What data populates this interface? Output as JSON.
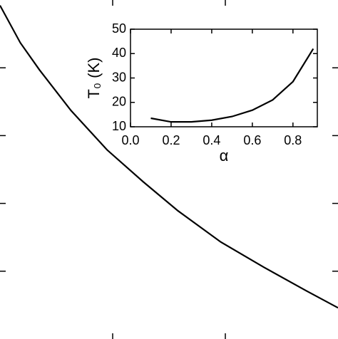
{
  "chart_data": [
    {
      "type": "line",
      "tick_labels": false,
      "x": [
        0,
        0.18,
        0.35,
        0.63,
        0.95,
        1.27,
        1.58,
        1.96,
        2.34,
        2.72,
        3.0
      ],
      "series": [
        {
          "color": "#000000",
          "values": [
            4.92,
            4.37,
            3.97,
            3.37,
            2.79,
            2.32,
            1.89,
            1.43,
            1.06,
            0.71,
            0.46
          ]
        }
      ],
      "xlim": [
        0,
        3
      ],
      "ylim": [
        0,
        5
      ],
      "xticks": [
        1,
        2
      ],
      "yticks": [
        1,
        2,
        3,
        4
      ]
    },
    {
      "type": "line",
      "tick_labels": true,
      "xlabel": "α",
      "ylabel": "T₀ (K)",
      "x": [
        0.1,
        0.2,
        0.3,
        0.4,
        0.5,
        0.6,
        0.7,
        0.8,
        0.9
      ],
      "series": [
        {
          "color": "#000000",
          "values": [
            13.5,
            12,
            12,
            12.7,
            14.2,
            16.8,
            21,
            28.5,
            42
          ]
        }
      ],
      "xlim": [
        0,
        0.92
      ],
      "ylim": [
        10,
        50
      ],
      "xticks": [
        {
          "value": 0,
          "label": "0.0"
        },
        0.2,
        0.4,
        0.6,
        0.8
      ],
      "yticks": [
        10,
        20,
        30,
        40,
        50
      ]
    }
  ]
}
